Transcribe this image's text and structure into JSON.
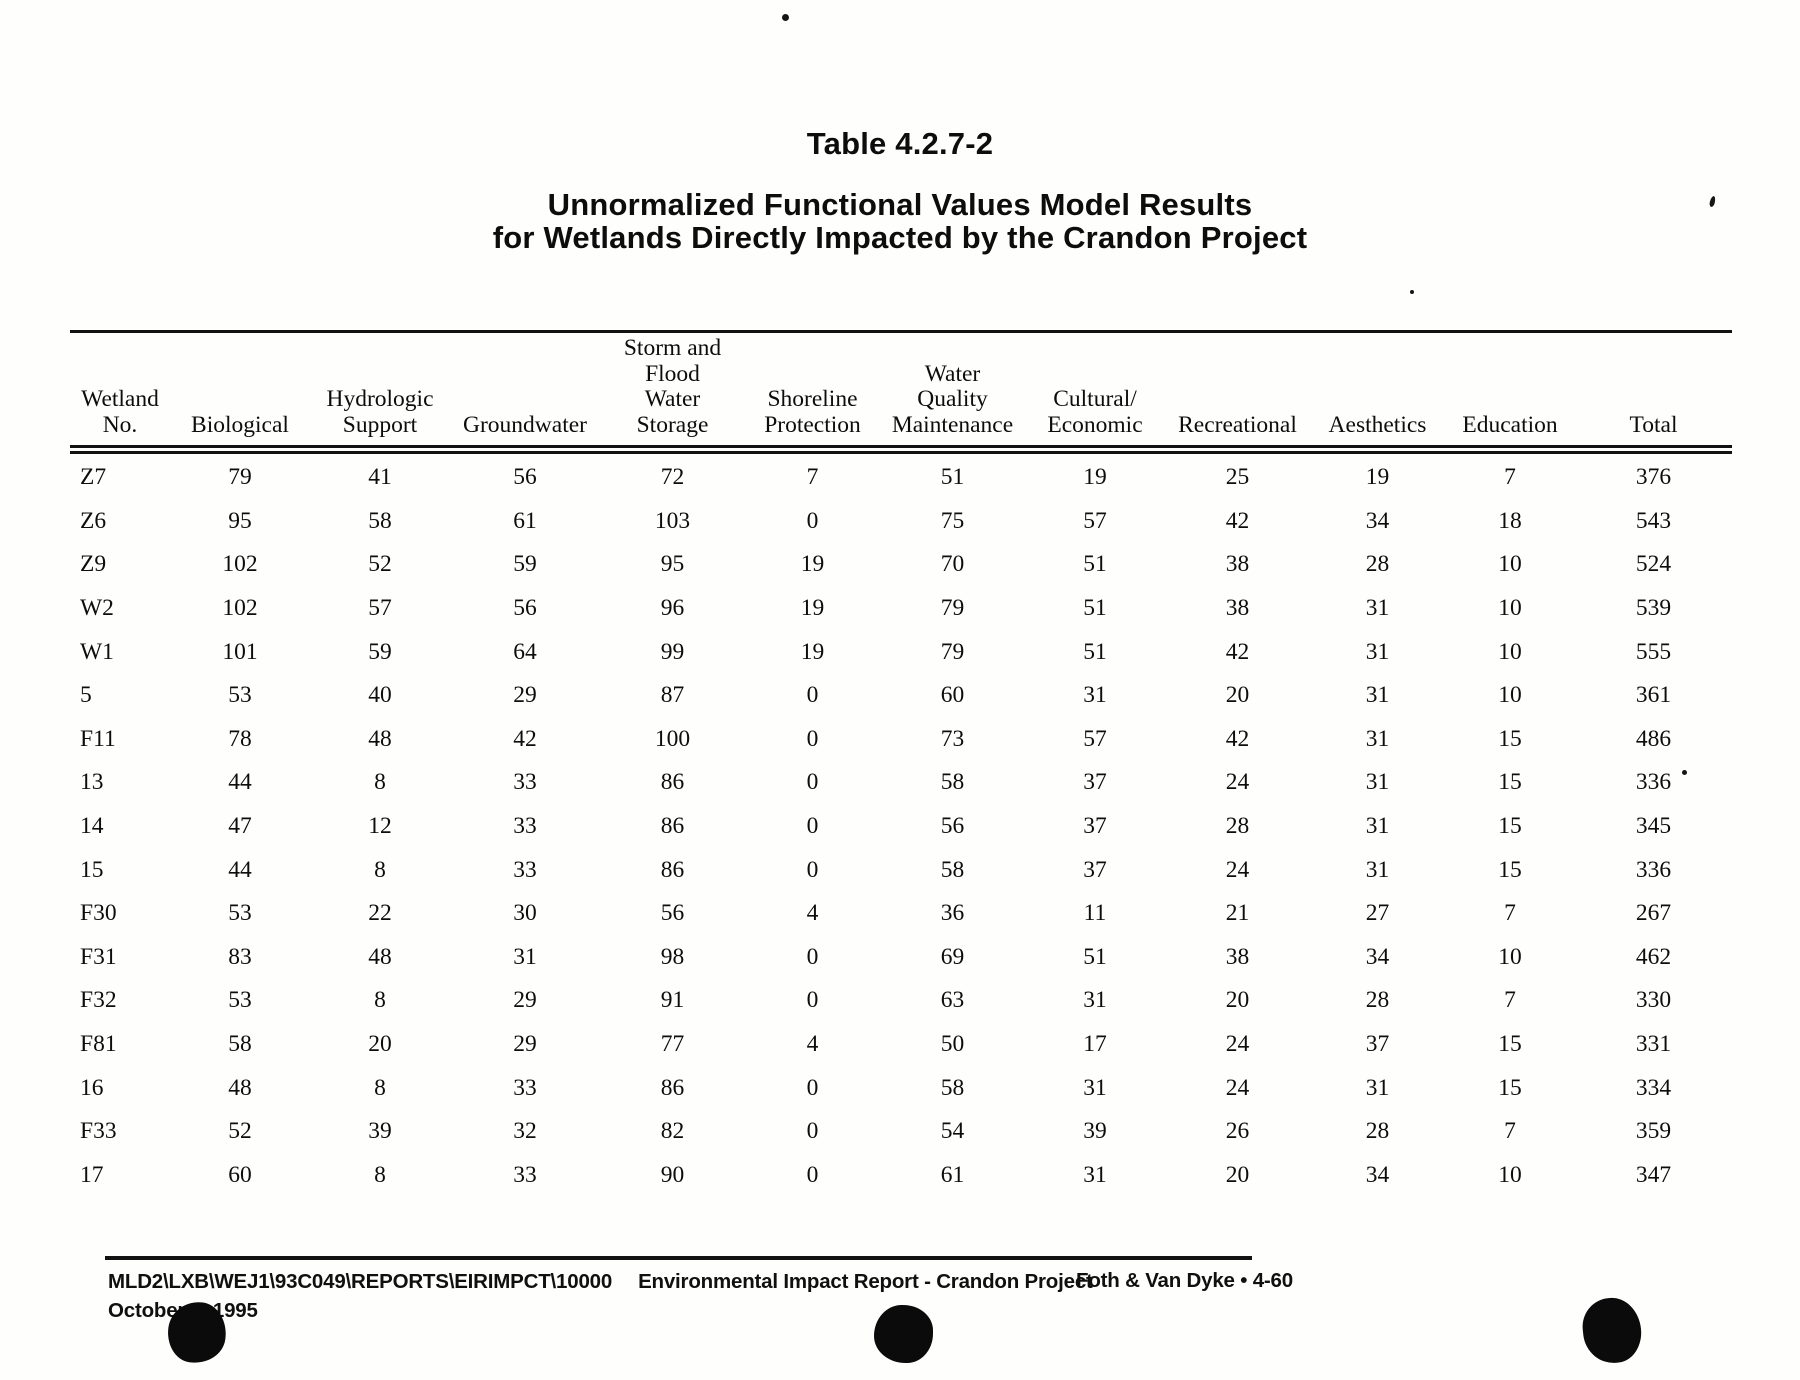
{
  "header": {
    "table_label": "Table 4.2.7-2",
    "title_line1": "Unnormalized Functional Values Model Results",
    "title_line2": "for Wetlands Directly Impacted by the Crandon Project"
  },
  "table": {
    "columns": [
      {
        "key": "wetland-no",
        "label_lines": [
          "Wetland",
          "No."
        ]
      },
      {
        "key": "biological",
        "label_lines": [
          "Biological"
        ]
      },
      {
        "key": "hydrologic-support",
        "label_lines": [
          "Hydrologic",
          "Support"
        ]
      },
      {
        "key": "groundwater",
        "label_lines": [
          "Groundwater"
        ]
      },
      {
        "key": "storm-flood-water-storage",
        "label_lines": [
          "Storm and",
          "Flood",
          "Water",
          "Storage"
        ]
      },
      {
        "key": "shoreline-protection",
        "label_lines": [
          "Shoreline",
          "Protection"
        ]
      },
      {
        "key": "water-quality-maintenance",
        "label_lines": [
          "Water",
          "Quality",
          "Maintenance"
        ]
      },
      {
        "key": "cultural-economic",
        "label_lines": [
          "Cultural/",
          "Economic"
        ]
      },
      {
        "key": "recreational",
        "label_lines": [
          "Recreational"
        ]
      },
      {
        "key": "aesthetics",
        "label_lines": [
          "Aesthetics"
        ]
      },
      {
        "key": "education",
        "label_lines": [
          "Education"
        ]
      },
      {
        "key": "total",
        "label_lines": [
          "Total"
        ]
      }
    ],
    "rows": [
      {
        "wetland_no": "Z7",
        "values": [
          79,
          41,
          56,
          72,
          7,
          51,
          19,
          25,
          19,
          7,
          376
        ]
      },
      {
        "wetland_no": "Z6",
        "values": [
          95,
          58,
          61,
          103,
          0,
          75,
          57,
          42,
          34,
          18,
          543
        ]
      },
      {
        "wetland_no": "Z9",
        "values": [
          102,
          52,
          59,
          95,
          19,
          70,
          51,
          38,
          28,
          10,
          524
        ]
      },
      {
        "wetland_no": "W2",
        "values": [
          102,
          57,
          56,
          96,
          19,
          79,
          51,
          38,
          31,
          10,
          539
        ]
      },
      {
        "wetland_no": "W1",
        "values": [
          101,
          59,
          64,
          99,
          19,
          79,
          51,
          42,
          31,
          10,
          555
        ]
      },
      {
        "wetland_no": "5",
        "values": [
          53,
          40,
          29,
          87,
          0,
          60,
          31,
          20,
          31,
          10,
          361
        ]
      },
      {
        "wetland_no": "F11",
        "values": [
          78,
          48,
          42,
          100,
          0,
          73,
          57,
          42,
          31,
          15,
          486
        ]
      },
      {
        "wetland_no": "13",
        "values": [
          44,
          8,
          33,
          86,
          0,
          58,
          37,
          24,
          31,
          15,
          336
        ]
      },
      {
        "wetland_no": "14",
        "values": [
          47,
          12,
          33,
          86,
          0,
          56,
          37,
          28,
          31,
          15,
          345
        ]
      },
      {
        "wetland_no": "15",
        "values": [
          44,
          8,
          33,
          86,
          0,
          58,
          37,
          24,
          31,
          15,
          336
        ]
      },
      {
        "wetland_no": "F30",
        "values": [
          53,
          22,
          30,
          56,
          4,
          36,
          11,
          21,
          27,
          7,
          267
        ]
      },
      {
        "wetland_no": "F31",
        "values": [
          83,
          48,
          31,
          98,
          0,
          69,
          51,
          38,
          34,
          10,
          462
        ]
      },
      {
        "wetland_no": "F32",
        "values": [
          53,
          8,
          29,
          91,
          0,
          63,
          31,
          20,
          28,
          7,
          330
        ]
      },
      {
        "wetland_no": "F81",
        "values": [
          58,
          20,
          29,
          77,
          4,
          50,
          17,
          24,
          37,
          15,
          331
        ]
      },
      {
        "wetland_no": "16",
        "values": [
          48,
          8,
          33,
          86,
          0,
          58,
          31,
          24,
          31,
          15,
          334
        ]
      },
      {
        "wetland_no": "F33",
        "values": [
          52,
          39,
          32,
          82,
          0,
          54,
          39,
          26,
          28,
          7,
          359
        ]
      },
      {
        "wetland_no": "17",
        "values": [
          60,
          8,
          33,
          90,
          0,
          61,
          31,
          20,
          34,
          10,
          347
        ]
      }
    ]
  },
  "footer": {
    "file_path": "MLD2\\LXB\\WEJ1\\93C049\\REPORTS\\EIRIMPCT\\10000",
    "report_title": "Environmental Impact Report - Crandon Project",
    "page_ref": "Foth & Van Dyke • 4-60",
    "date": "October 4, 1995"
  }
}
